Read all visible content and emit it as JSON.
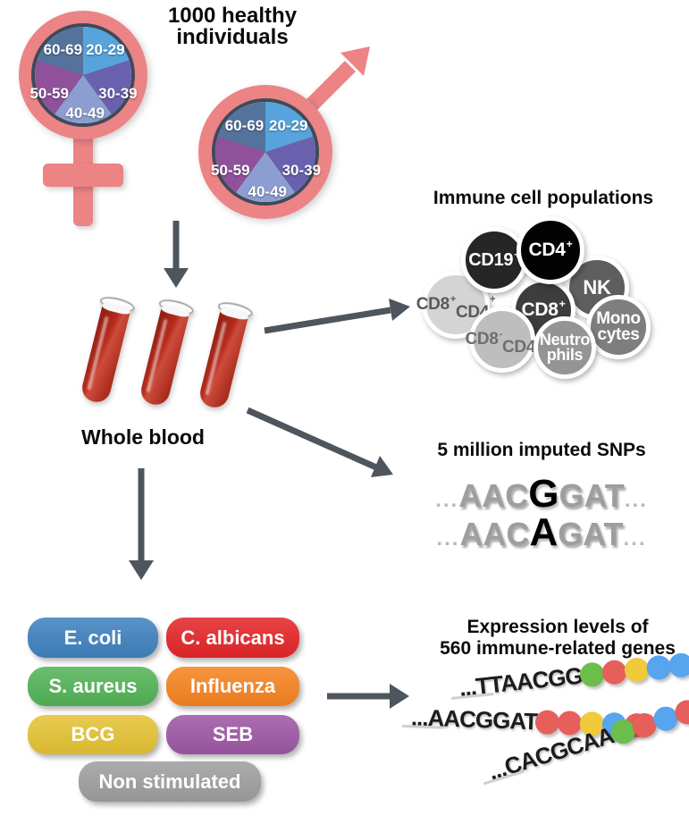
{
  "title": "1000 healthy individuals",
  "demographics": {
    "symbol_color": "#ec8385",
    "pie_border_color": "#3e4a59",
    "age_groups": [
      {
        "label": "20-29",
        "color": "#57a4dd"
      },
      {
        "label": "30-39",
        "color": "#6a61ae"
      },
      {
        "label": "40-49",
        "color": "#8c9ed1"
      },
      {
        "label": "50-59",
        "color": "#8f519a"
      },
      {
        "label": "60-69",
        "color": "#54739c"
      }
    ]
  },
  "whole_blood": {
    "label": "Whole blood",
    "tube_count": 3,
    "tube_color": "#b02a1e"
  },
  "immune_cells": {
    "title": "Immune cell populations",
    "cells": [
      {
        "label": "CD19⁺",
        "bg": "#262626",
        "fg": "#ffffff"
      },
      {
        "label": "CD4⁺",
        "bg": "#030303",
        "fg": "#ffffff"
      },
      {
        "label": "NK",
        "bg": "#5e5e5e",
        "fg": "#ffffff"
      },
      {
        "label": "CD8⁺\nCD4⁺",
        "bg": "#d4d4d4",
        "fg": "#595959"
      },
      {
        "label": "CD8⁺",
        "bg": "#3d3d3d",
        "fg": "#ffffff"
      },
      {
        "label": "CD8⁻\nCD4⁻",
        "bg": "#bebebe",
        "fg": "#6e6e6e"
      },
      {
        "label": "Neutro\nphils",
        "bg": "#949494",
        "fg": "#ffffff"
      },
      {
        "label": "Mono\ncytes",
        "bg": "#7e7e7e",
        "fg": "#ffffff"
      }
    ]
  },
  "snps": {
    "title": "5 million imputed SNPs",
    "sequences": [
      {
        "prefix": "...",
        "before": "AAC",
        "variant": "G",
        "after": "GAT",
        "suffix": "..."
      },
      {
        "prefix": "...",
        "before": "AAC",
        "variant": "A",
        "after": "GAT",
        "suffix": "..."
      }
    ]
  },
  "stimulations": {
    "items": [
      {
        "label": "E. coli",
        "color": "#3e81be"
      },
      {
        "label": "C. albicans",
        "color": "#e42528"
      },
      {
        "label": "S. aureus",
        "color": "#52b356"
      },
      {
        "label": "Influenza",
        "color": "#f5831f"
      },
      {
        "label": "BCG",
        "color": "#e4c233"
      },
      {
        "label": "SEB",
        "color": "#9d57a5"
      },
      {
        "label": "Non stimulated",
        "color": "#9e9e9e"
      }
    ]
  },
  "expression": {
    "title": "Expression levels of\n560 immune-related genes",
    "dot_colors": {
      "green": "#6bbe4b",
      "red": "#e75f5b",
      "yellow": "#f1ca3b",
      "blue": "#57a4ef"
    },
    "rows": [
      {
        "sequence": "...TTAACGG",
        "dots": [
          "green",
          "red",
          "yellow",
          "blue",
          "blue"
        ]
      },
      {
        "sequence": "...AACGGAT",
        "dots": [
          "red",
          "red",
          "yellow",
          "blue",
          "red"
        ]
      },
      {
        "sequence": "...CACGCAA",
        "dots": [
          "green",
          "red",
          "blue",
          "red",
          "red"
        ]
      }
    ]
  },
  "arrow_color": "#4e555d"
}
